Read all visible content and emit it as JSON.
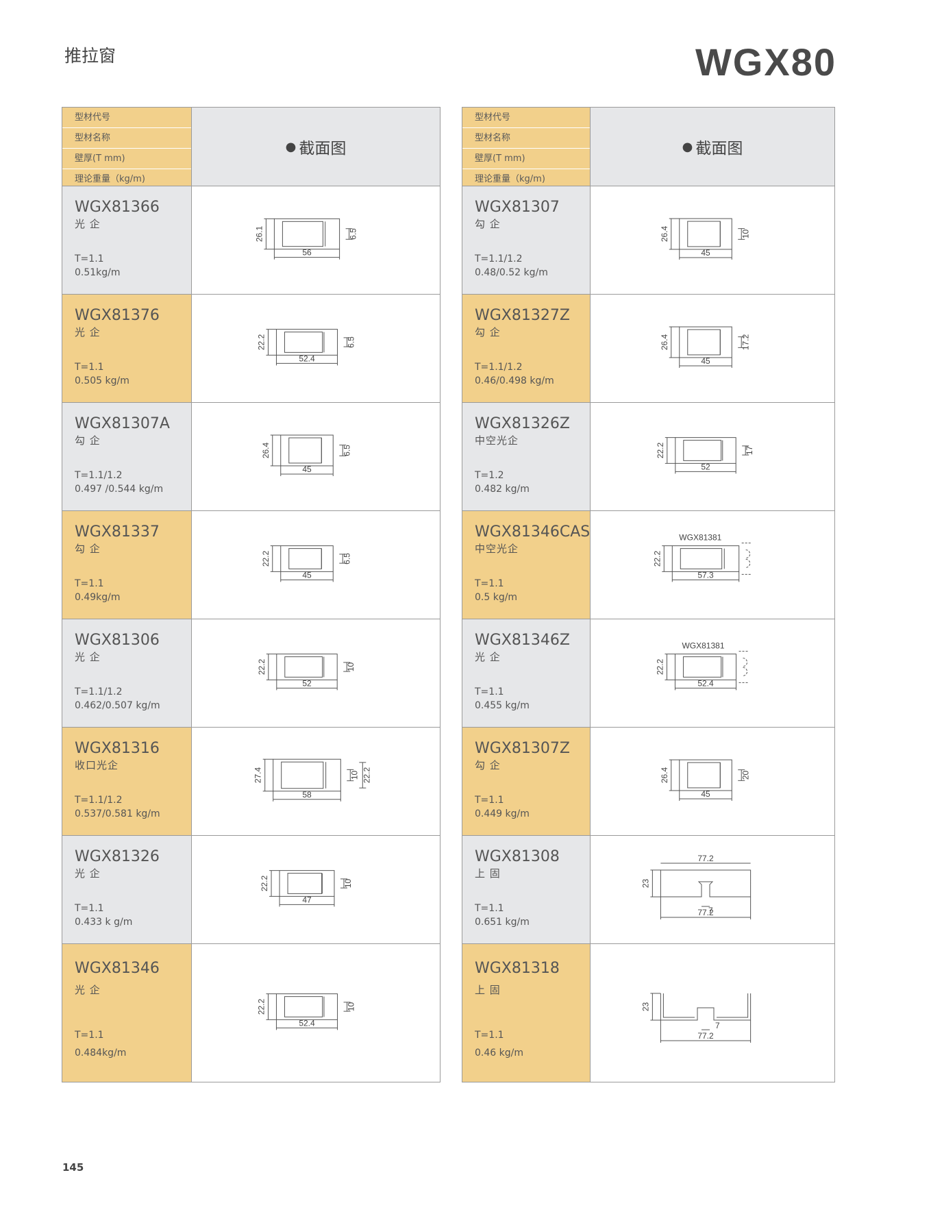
{
  "header": {
    "category": "推拉窗",
    "series": "WGX80"
  },
  "page_number": "145",
  "tables": [
    {
      "header_labels": [
        "型材代号",
        "型材名称",
        "壁厚(T mm)",
        "理论重量（kg/m)"
      ],
      "section_label": "截面图",
      "rows": [
        {
          "code": "WGX81366",
          "name": "光 企",
          "thickness": "T=1.1",
          "weight": "0.51kg/m",
          "drawing": {
            "height": "26.1",
            "width": "56",
            "right": [
              "6.5"
            ]
          }
        },
        {
          "code": "WGX81376",
          "name": "光 企",
          "thickness": "T=1.1",
          "weight": "0.505 kg/m",
          "drawing": {
            "height": "22.2",
            "width": "52.4",
            "right": [
              "6.5"
            ]
          }
        },
        {
          "code": "WGX81307A",
          "name": "勾 企",
          "thickness": "T=1.1/1.2",
          "weight": "0.497 /0.544 kg/m",
          "drawing": {
            "height": "26.4",
            "width": "45",
            "right": [
              "6.5"
            ]
          }
        },
        {
          "code": "WGX81337",
          "name": "勾 企",
          "thickness": "T=1.1",
          "weight": "0.49kg/m",
          "drawing": {
            "height": "22.2",
            "width": "45",
            "right": [
              "6.5"
            ]
          }
        },
        {
          "code": "WGX81306",
          "name": "光 企",
          "thickness": "T=1.1/1.2",
          "weight": "0.462/0.507 kg/m",
          "drawing": {
            "height": "22.2",
            "width": "52",
            "right": [
              "10"
            ]
          }
        },
        {
          "code": "WGX81316",
          "name": "收口光企",
          "thickness": "T=1.1/1.2",
          "weight": "0.537/0.581 kg/m",
          "drawing": {
            "height": "27.4",
            "width": "58",
            "right": [
              "10",
              "22.2"
            ]
          }
        },
        {
          "code": "WGX81326",
          "name": "光 企",
          "thickness": "T=1.1",
          "weight": "0.433 k g/m",
          "drawing": {
            "height": "22.2",
            "width": "47",
            "right": [
              "10"
            ]
          }
        },
        {
          "code": "WGX81346",
          "name": "光 企",
          "thickness": "T=1.1",
          "weight": "0.484kg/m",
          "drawing": {
            "height": "22.2",
            "width": "52.4",
            "right": [
              "10"
            ]
          }
        }
      ]
    },
    {
      "header_labels": [
        "型材代号",
        "型材名称",
        "壁厚(T mm)",
        "理论重量（kg/m)"
      ],
      "section_label": "截面图",
      "rows": [
        {
          "code": "WGX81307",
          "name": "勾 企",
          "thickness": "T=1.1/1.2",
          "weight": "0.48/0.52 kg/m",
          "drawing": {
            "height": "26.4",
            "width": "45",
            "right": [
              "10"
            ]
          }
        },
        {
          "code": "WGX81327Z",
          "name": "勾 企",
          "thickness": "T=1.1/1.2",
          "weight": "0.46/0.498 kg/m",
          "drawing": {
            "height": "26.4",
            "width": "45",
            "right": [
              "17.2"
            ]
          }
        },
        {
          "code": "WGX81326Z",
          "name": "中空光企",
          "thickness": "T=1.2",
          "weight": "0.482 kg/m",
          "drawing": {
            "height": "22.2",
            "width": "52",
            "right": [
              "17"
            ]
          }
        },
        {
          "code": "WGX81346CAS",
          "name": "中空光企",
          "thickness": "T=1.1",
          "weight": "0.5 kg/m",
          "drawing": {
            "height": "22.2",
            "width": "57.3",
            "note": "WGX81381"
          }
        },
        {
          "code": "WGX81346Z",
          "name": "光 企",
          "thickness": "T=1.1",
          "weight": "0.455 kg/m",
          "drawing": {
            "height": "22.2",
            "width": "52.4",
            "note": "WGX81381"
          }
        },
        {
          "code": "WGX81307Z",
          "name": "勾 企",
          "thickness": "T=1.1",
          "weight": "0.449 kg/m",
          "drawing": {
            "height": "26.4",
            "width": "45",
            "right": [
              "20"
            ]
          }
        },
        {
          "code": "WGX81308",
          "name": "上 固",
          "thickness": "T=1.1",
          "weight": "0.651 kg/m",
          "drawing": {
            "top": "77.2",
            "height": "23",
            "slot": "7",
            "width": "77.2"
          }
        },
        {
          "code": "WGX81318",
          "name": "上 固",
          "thickness": "T=1.1",
          "weight": "0.46 kg/m",
          "drawing": {
            "height": "23",
            "slot": "7",
            "width": "77.2"
          }
        }
      ]
    }
  ]
}
